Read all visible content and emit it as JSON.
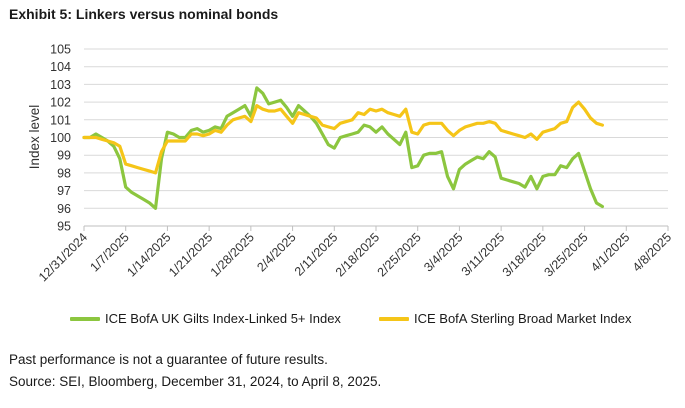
{
  "header": {
    "title": "Exhibit 5: Linkers versus nominal bonds"
  },
  "chart_data": {
    "type": "line",
    "ylabel": "Index level",
    "ylim": [
      95,
      105
    ],
    "yticks": [
      95,
      96,
      97,
      98,
      99,
      100,
      101,
      102,
      103,
      104,
      105
    ],
    "xlim": [
      0,
      98
    ],
    "xticks": [
      {
        "label": "12/31/2024",
        "x": 0
      },
      {
        "label": "1/7/2025",
        "x": 7
      },
      {
        "label": "1/14/2025",
        "x": 14
      },
      {
        "label": "1/21/2025",
        "x": 21
      },
      {
        "label": "1/28/2025",
        "x": 28
      },
      {
        "label": "2/4/2025",
        "x": 35
      },
      {
        "label": "2/11/2025",
        "x": 42
      },
      {
        "label": "2/18/2025",
        "x": 49
      },
      {
        "label": "2/25/2025",
        "x": 56
      },
      {
        "label": "3/4/2025",
        "x": 63
      },
      {
        "label": "3/11/2025",
        "x": 70
      },
      {
        "label": "3/18/2025",
        "x": 77
      },
      {
        "label": "3/25/2025",
        "x": 84
      },
      {
        "label": "4/1/2025",
        "x": 91
      },
      {
        "label": "4/8/2025",
        "x": 98
      }
    ],
    "grid": "horizontal",
    "legend_position": "bottom",
    "series": [
      {
        "name": "ICE BofA UK Gilts Index-Linked 5+ Index",
        "color": "#8cc63f",
        "points": [
          [
            0,
            100
          ],
          [
            1,
            100
          ],
          [
            2,
            100.2
          ],
          [
            3,
            100
          ],
          [
            4,
            99.8
          ],
          [
            5,
            99.5
          ],
          [
            6,
            98.8
          ],
          [
            7,
            97.2
          ],
          [
            8,
            96.9
          ],
          [
            9,
            96.7
          ],
          [
            10,
            96.5
          ],
          [
            11,
            96.3
          ],
          [
            12,
            96
          ],
          [
            13,
            98.8
          ],
          [
            14,
            100.3
          ],
          [
            15,
            100.2
          ],
          [
            16,
            100
          ],
          [
            17,
            100
          ],
          [
            18,
            100.4
          ],
          [
            19,
            100.5
          ],
          [
            20,
            100.3
          ],
          [
            21,
            100.4
          ],
          [
            22,
            100.6
          ],
          [
            23,
            100.5
          ],
          [
            24,
            101.2
          ],
          [
            25,
            101.4
          ],
          [
            26,
            101.6
          ],
          [
            27,
            101.8
          ],
          [
            28,
            101.2
          ],
          [
            29,
            102.8
          ],
          [
            30,
            102.5
          ],
          [
            31,
            101.9
          ],
          [
            32,
            102
          ],
          [
            33,
            102.1
          ],
          [
            34,
            101.7
          ],
          [
            35,
            101.2
          ],
          [
            36,
            101.8
          ],
          [
            37,
            101.5
          ],
          [
            38,
            101.2
          ],
          [
            39,
            100.8
          ],
          [
            40,
            100.2
          ],
          [
            41,
            99.6
          ],
          [
            42,
            99.4
          ],
          [
            43,
            100
          ],
          [
            44,
            100.1
          ],
          [
            45,
            100.2
          ],
          [
            46,
            100.3
          ],
          [
            47,
            100.7
          ],
          [
            48,
            100.6
          ],
          [
            49,
            100.3
          ],
          [
            50,
            100.6
          ],
          [
            51,
            100.2
          ],
          [
            52,
            99.9
          ],
          [
            53,
            99.6
          ],
          [
            54,
            100.3
          ],
          [
            55,
            98.3
          ],
          [
            56,
            98.4
          ],
          [
            57,
            99
          ],
          [
            58,
            99.1
          ],
          [
            59,
            99.1
          ],
          [
            60,
            99.2
          ],
          [
            61,
            97.8
          ],
          [
            62,
            97.1
          ],
          [
            63,
            98.2
          ],
          [
            64,
            98.5
          ],
          [
            65,
            98.7
          ],
          [
            66,
            98.9
          ],
          [
            67,
            98.8
          ],
          [
            68,
            99.2
          ],
          [
            69,
            98.9
          ],
          [
            70,
            97.7
          ],
          [
            71,
            97.6
          ],
          [
            72,
            97.5
          ],
          [
            73,
            97.4
          ],
          [
            74,
            97.2
          ],
          [
            75,
            97.8
          ],
          [
            76,
            97.1
          ],
          [
            77,
            97.8
          ],
          [
            78,
            97.9
          ],
          [
            79,
            97.9
          ],
          [
            80,
            98.4
          ],
          [
            81,
            98.3
          ],
          [
            82,
            98.8
          ],
          [
            83,
            99.1
          ],
          [
            84,
            98.1
          ],
          [
            85,
            97.1
          ],
          [
            86,
            96.3
          ],
          [
            87,
            96.1
          ]
        ]
      },
      {
        "name": "ICE BofA Sterling Broad Market Index",
        "color": "#f5c518",
        "points": [
          [
            0,
            100
          ],
          [
            1,
            100
          ],
          [
            2,
            100
          ],
          [
            3,
            99.9
          ],
          [
            4,
            99.8
          ],
          [
            5,
            99.7
          ],
          [
            6,
            99.5
          ],
          [
            7,
            98.5
          ],
          [
            8,
            98.4
          ],
          [
            9,
            98.3
          ],
          [
            10,
            98.2
          ],
          [
            11,
            98.1
          ],
          [
            12,
            98
          ],
          [
            13,
            99.2
          ],
          [
            14,
            99.8
          ],
          [
            15,
            99.8
          ],
          [
            16,
            99.8
          ],
          [
            17,
            99.8
          ],
          [
            18,
            100.2
          ],
          [
            19,
            100.2
          ],
          [
            20,
            100.1
          ],
          [
            21,
            100.2
          ],
          [
            22,
            100.4
          ],
          [
            23,
            100.3
          ],
          [
            24,
            100.7
          ],
          [
            25,
            101
          ],
          [
            26,
            101.1
          ],
          [
            27,
            101.2
          ],
          [
            28,
            100.9
          ],
          [
            29,
            101.8
          ],
          [
            30,
            101.6
          ],
          [
            31,
            101.5
          ],
          [
            32,
            101.5
          ],
          [
            33,
            101.6
          ],
          [
            34,
            101.2
          ],
          [
            35,
            100.8
          ],
          [
            36,
            101.4
          ],
          [
            37,
            101.3
          ],
          [
            38,
            101.2
          ],
          [
            39,
            101.1
          ],
          [
            40,
            100.7
          ],
          [
            41,
            100.6
          ],
          [
            42,
            100.5
          ],
          [
            43,
            100.8
          ],
          [
            44,
            100.9
          ],
          [
            45,
            101
          ],
          [
            46,
            101.4
          ],
          [
            47,
            101.3
          ],
          [
            48,
            101.6
          ],
          [
            49,
            101.5
          ],
          [
            50,
            101.6
          ],
          [
            51,
            101.4
          ],
          [
            52,
            101.3
          ],
          [
            53,
            101.2
          ],
          [
            54,
            101.6
          ],
          [
            55,
            100.3
          ],
          [
            56,
            100.2
          ],
          [
            57,
            100.7
          ],
          [
            58,
            100.8
          ],
          [
            59,
            100.8
          ],
          [
            60,
            100.8
          ],
          [
            61,
            100.4
          ],
          [
            62,
            100.1
          ],
          [
            63,
            100.4
          ],
          [
            64,
            100.6
          ],
          [
            65,
            100.7
          ],
          [
            66,
            100.8
          ],
          [
            67,
            100.8
          ],
          [
            68,
            100.9
          ],
          [
            69,
            100.8
          ],
          [
            70,
            100.4
          ],
          [
            71,
            100.3
          ],
          [
            72,
            100.2
          ],
          [
            73,
            100.1
          ],
          [
            74,
            100
          ],
          [
            75,
            100.2
          ],
          [
            76,
            99.9
          ],
          [
            77,
            100.3
          ],
          [
            78,
            100.4
          ],
          [
            79,
            100.5
          ],
          [
            80,
            100.8
          ],
          [
            81,
            100.9
          ],
          [
            82,
            101.7
          ],
          [
            83,
            102
          ],
          [
            84,
            101.6
          ],
          [
            85,
            101.1
          ],
          [
            86,
            100.8
          ],
          [
            87,
            100.7
          ]
        ]
      }
    ]
  },
  "footer": {
    "note": "Past performance is not a guarantee of future results.",
    "source": "Source: SEI, Bloomberg, December 31, 2024, to April 8, 2025."
  }
}
